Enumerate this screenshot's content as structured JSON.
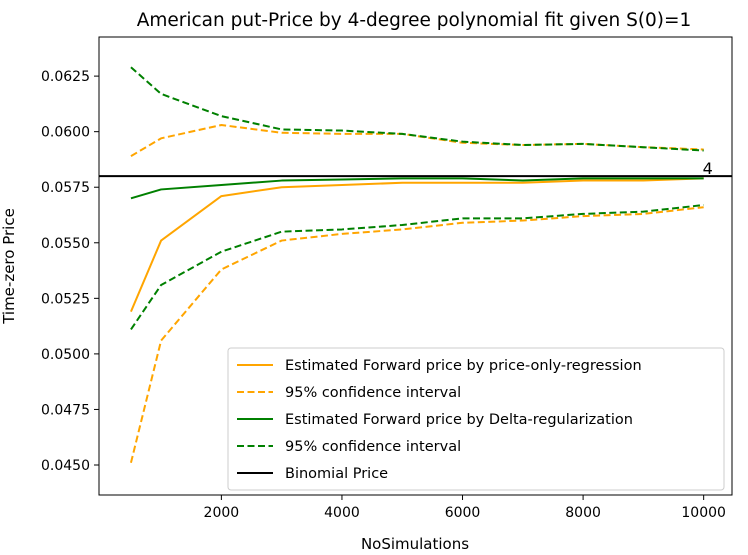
{
  "chart_data": {
    "type": "line",
    "title": "American put-Price by 4-degree polynomial fit given S(0)=1",
    "xlabel": "NoSimulations",
    "ylabel": "Time-zero Price",
    "xlim": [
      -30,
      10470
    ],
    "ylim": [
      0.04365,
      0.06426
    ],
    "xticks": [
      2000,
      4000,
      6000,
      8000,
      10000
    ],
    "xtick_labels": [
      "2000",
      "4000",
      "6000",
      "8000",
      "10000"
    ],
    "yticks": [
      0.045,
      0.0475,
      0.05,
      0.0525,
      0.055,
      0.0575,
      0.06,
      0.0625
    ],
    "ytick_labels": [
      "0.0450",
      "0.0475",
      "0.0500",
      "0.0525",
      "0.0550",
      "0.0575",
      "0.0600",
      "0.0625"
    ],
    "grid": false,
    "legend_position": "lower-right",
    "x": [
      500,
      1000,
      2000,
      3000,
      4000,
      5000,
      6000,
      7000,
      8000,
      9000,
      10000
    ],
    "series": [
      {
        "name": "Estimated Forward price by price-only-regression",
        "color": "#ffa500",
        "dash": "solid",
        "values": [
          0.0519,
          0.0551,
          0.0571,
          0.0575,
          0.0576,
          0.0577,
          0.0577,
          0.0577,
          0.0578,
          0.0578,
          0.0579
        ]
      },
      {
        "name": "95% confidence interval",
        "color": "#ffa500",
        "dash": "dashed",
        "values": [
          0.0589,
          0.0597,
          0.0603,
          0.05995,
          0.0599,
          0.0599,
          0.0595,
          0.0594,
          0.05945,
          0.0593,
          0.0592
        ]
      },
      {
        "name": "",
        "color": "#ffa500",
        "dash": "dashed",
        "values": [
          0.0451,
          0.0506,
          0.0538,
          0.0551,
          0.0554,
          0.0556,
          0.0559,
          0.056,
          0.0562,
          0.0563,
          0.0566
        ]
      },
      {
        "name": "Estimated Forward price by Delta-regularization",
        "color": "#008000",
        "dash": "solid",
        "values": [
          0.057,
          0.0574,
          0.0576,
          0.0578,
          0.05785,
          0.0579,
          0.0579,
          0.0578,
          0.0579,
          0.0579,
          0.0579
        ]
      },
      {
        "name": "95% confidence interval",
        "color": "#008000",
        "dash": "dashed",
        "values": [
          0.0629,
          0.0617,
          0.0607,
          0.0601,
          0.06005,
          0.0599,
          0.05955,
          0.0594,
          0.05945,
          0.0593,
          0.05915
        ]
      },
      {
        "name": "",
        "color": "#008000",
        "dash": "dashed",
        "values": [
          0.0511,
          0.0531,
          0.0546,
          0.0555,
          0.0556,
          0.0558,
          0.0561,
          0.0561,
          0.0563,
          0.0564,
          0.0567
        ]
      }
    ],
    "hline": {
      "name": "Binomial Price",
      "value": 0.058,
      "color": "#000000"
    },
    "annotation": {
      "text": "4",
      "x": 10000,
      "y": 0.058,
      "color": "#008000"
    },
    "legend_order": [
      {
        "label": "Estimated Forward price by price-only-regression",
        "color": "#ffa500",
        "dash": "solid"
      },
      {
        "label": "95% confidence interval",
        "color": "#ffa500",
        "dash": "dashed"
      },
      {
        "label": "Estimated Forward price by Delta-regularization",
        "color": "#008000",
        "dash": "solid"
      },
      {
        "label": "95% confidence interval",
        "color": "#008000",
        "dash": "dashed"
      },
      {
        "label": "Binomial Price",
        "color": "#000000",
        "dash": "solid"
      }
    ]
  }
}
